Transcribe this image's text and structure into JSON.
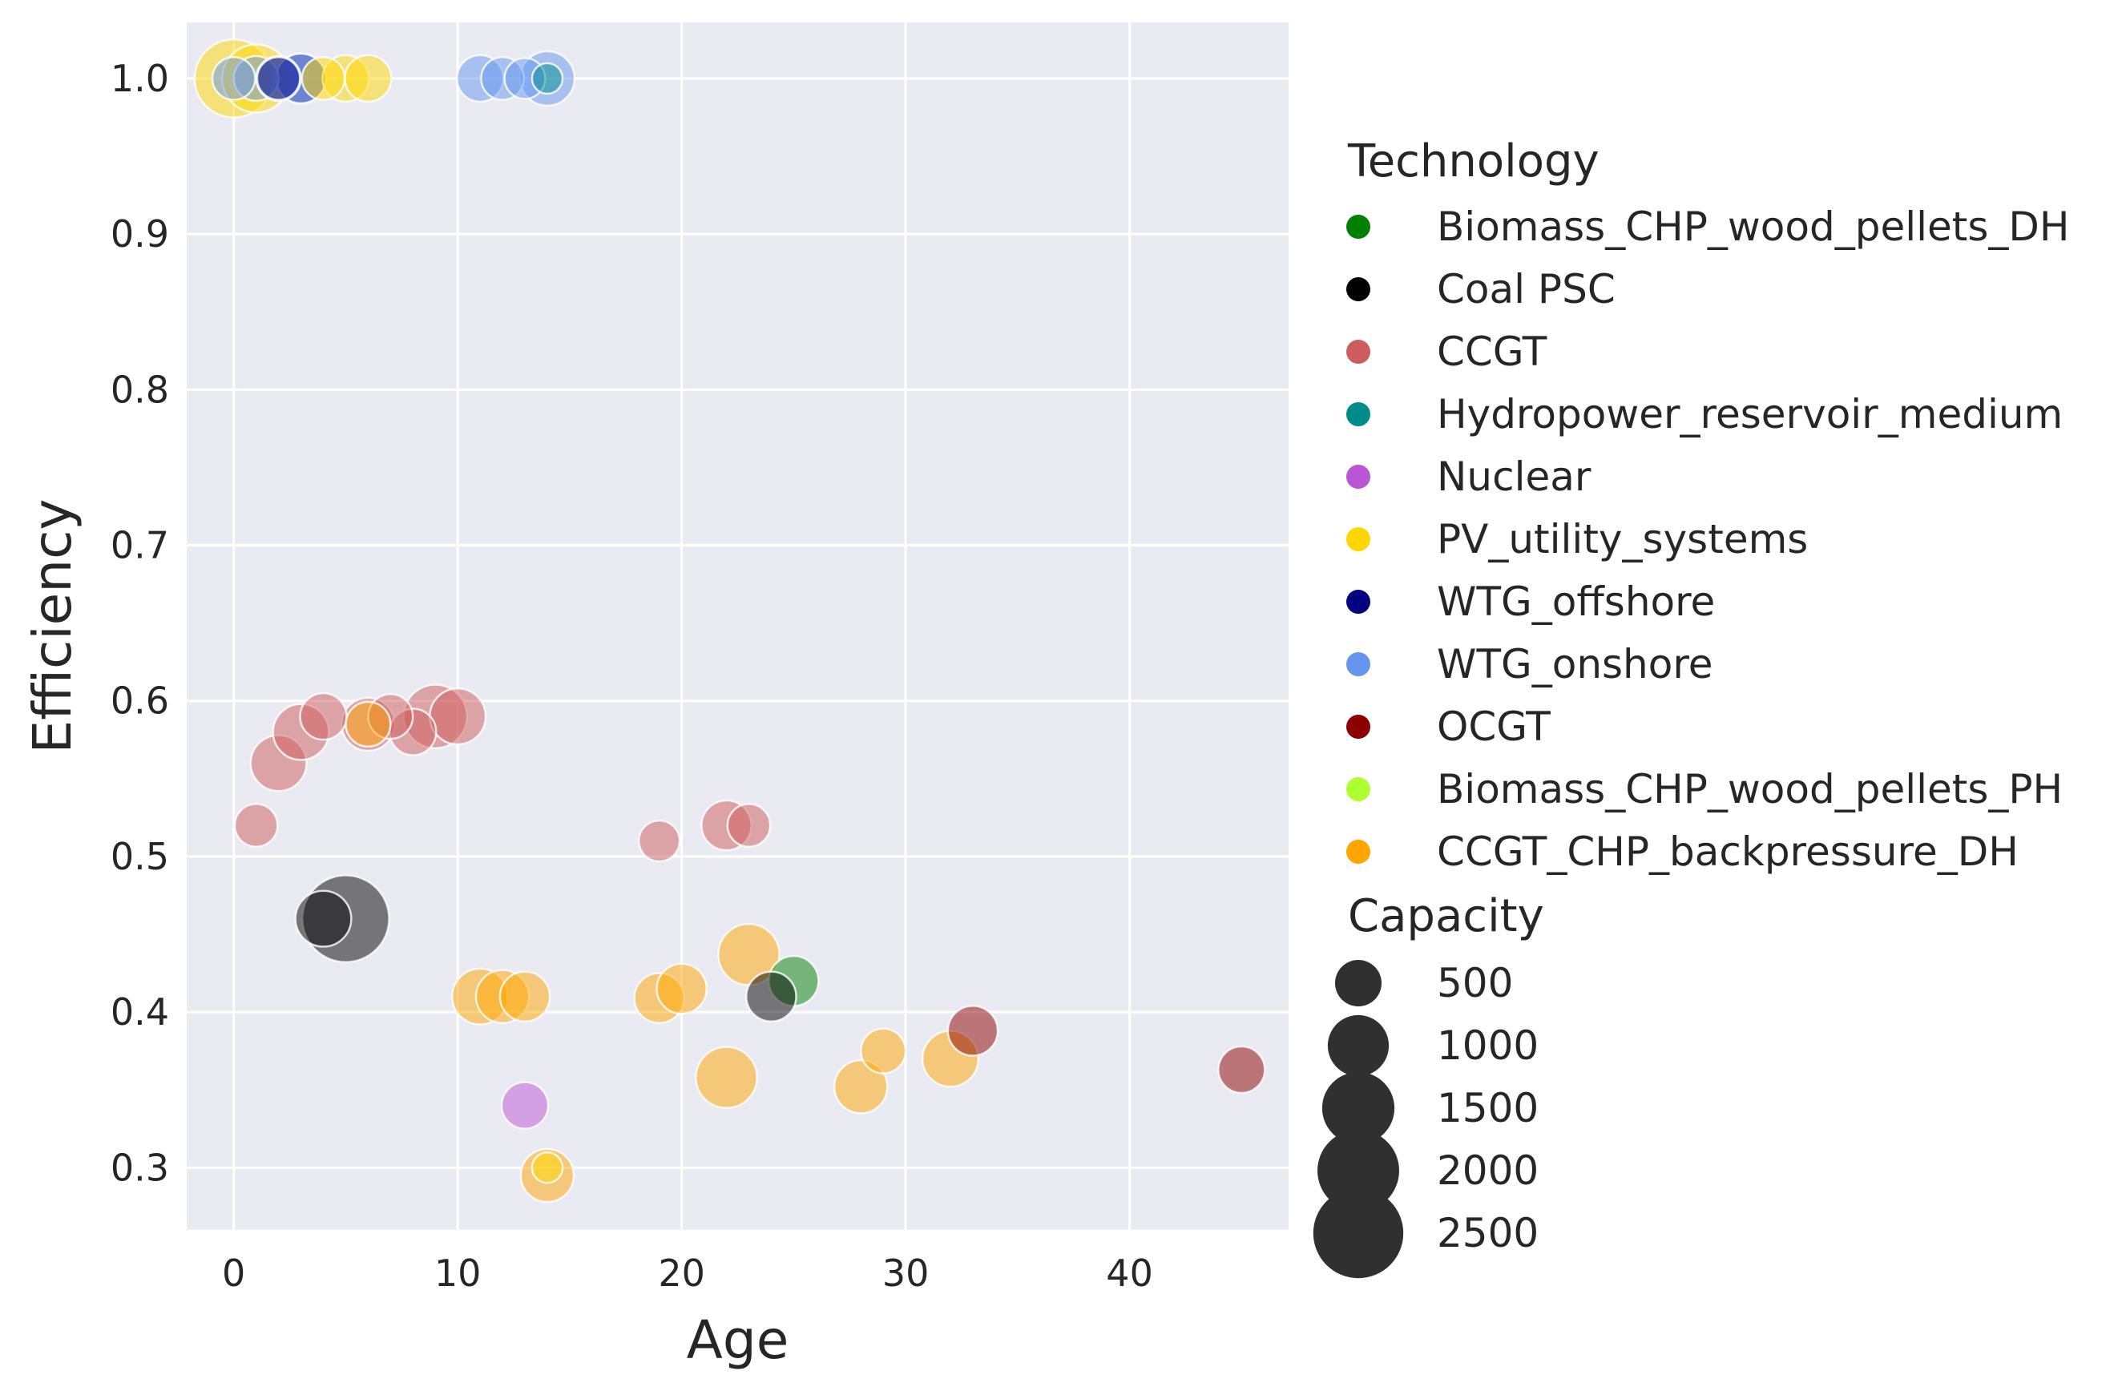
{
  "chart_data": {
    "type": "scatter",
    "xlabel": "Age",
    "ylabel": "Efficiency",
    "xlim": [
      -2.1,
      47.1
    ],
    "ylim": [
      0.26,
      1.036
    ],
    "x_ticks": [
      0,
      10,
      20,
      30,
      40
    ],
    "y_ticks": [
      0.3,
      0.4,
      0.5,
      0.6,
      0.7,
      0.8,
      0.9,
      1.0
    ],
    "y_tick_labels": [
      "0.3",
      "0.4",
      "0.5",
      "0.6",
      "0.7",
      "0.8",
      "0.9",
      "1.0"
    ],
    "grid": true,
    "background": "#EAEAF2",
    "point_alpha": 0.5,
    "legend": {
      "placement": "right",
      "hue_title": "Technology",
      "size_title": "Capacity",
      "size_entries": [
        500,
        1000,
        1500,
        2000,
        2500
      ]
    },
    "series": [
      {
        "name": "Biomass_CHP_wood_pellets_DH",
        "color": "#008000",
        "points": [
          {
            "x": 25,
            "y": 0.42,
            "capacity": 600
          }
        ]
      },
      {
        "name": "Coal PSC",
        "color": "#000000",
        "points": [
          {
            "x": 4,
            "y": 0.46,
            "capacity": 800
          },
          {
            "x": 5,
            "y": 0.46,
            "capacity": 2300
          },
          {
            "x": 24,
            "y": 0.41,
            "capacity": 600
          }
        ]
      },
      {
        "name": "CCGT",
        "color": "#CD5C5C",
        "points": [
          {
            "x": 1,
            "y": 0.52,
            "capacity": 400
          },
          {
            "x": 2,
            "y": 0.56,
            "capacity": 800
          },
          {
            "x": 3,
            "y": 0.58,
            "capacity": 800
          },
          {
            "x": 4,
            "y": 0.59,
            "capacity": 500
          },
          {
            "x": 6,
            "y": 0.585,
            "capacity": 700
          },
          {
            "x": 7,
            "y": 0.59,
            "capacity": 450
          },
          {
            "x": 8,
            "y": 0.58,
            "capacity": 500
          },
          {
            "x": 9,
            "y": 0.59,
            "capacity": 1100
          },
          {
            "x": 10,
            "y": 0.59,
            "capacity": 800
          },
          {
            "x": 19,
            "y": 0.51,
            "capacity": 350
          },
          {
            "x": 22,
            "y": 0.52,
            "capacity": 600
          },
          {
            "x": 23,
            "y": 0.52,
            "capacity": 400
          }
        ]
      },
      {
        "name": "Hydropower_reservoir_medium",
        "color": "#008B8B",
        "points": [
          {
            "x": 14,
            "y": 1.0,
            "capacity": 150
          }
        ]
      },
      {
        "name": "Nuclear",
        "color": "#BA55D3",
        "points": [
          {
            "x": 13,
            "y": 0.34,
            "capacity": 500
          }
        ]
      },
      {
        "name": "PV_utility_systems",
        "color": "#FFD700",
        "points": [
          {
            "x": 0,
            "y": 1.0,
            "capacity": 1800
          },
          {
            "x": 1,
            "y": 1.0,
            "capacity": 1300
          },
          {
            "x": 4,
            "y": 1.0,
            "capacity": 400
          },
          {
            "x": 5,
            "y": 1.0,
            "capacity": 500
          },
          {
            "x": 6,
            "y": 1.0,
            "capacity": 500
          },
          {
            "x": 14,
            "y": 0.3,
            "capacity": 150
          }
        ]
      },
      {
        "name": "WTG_offshore",
        "color": "#000080",
        "points": [
          {
            "x": 2,
            "y": 1.0,
            "capacity": 400
          },
          {
            "x": 3,
            "y": 1.0,
            "capacity": 600
          }
        ]
      },
      {
        "name": "WTG_onshore",
        "color": "#6495ED",
        "points": [
          {
            "x": 0,
            "y": 1.0,
            "capacity": 400
          },
          {
            "x": 1,
            "y": 1.0,
            "capacity": 450
          },
          {
            "x": 2,
            "y": 1.0,
            "capacity": 450
          },
          {
            "x": 3,
            "y": 1.0,
            "capacity": 600
          },
          {
            "x": 11,
            "y": 1.0,
            "capacity": 500
          },
          {
            "x": 12,
            "y": 1.0,
            "capacity": 400
          },
          {
            "x": 13,
            "y": 1.0,
            "capacity": 350
          },
          {
            "x": 14,
            "y": 1.0,
            "capacity": 750
          }
        ]
      },
      {
        "name": "OCGT",
        "color": "#8B0000",
        "points": [
          {
            "x": 33,
            "y": 0.388,
            "capacity": 600
          },
          {
            "x": 45,
            "y": 0.363,
            "capacity": 500
          }
        ]
      },
      {
        "name": "Biomass_CHP_wood_pellets_PH",
        "color": "#ADFF2F",
        "points": []
      },
      {
        "name": "CCGT_CHP_backpressure_DH",
        "color": "#FFA500",
        "points": [
          {
            "x": 6,
            "y": 0.585,
            "capacity": 450
          },
          {
            "x": 11,
            "y": 0.41,
            "capacity": 800
          },
          {
            "x": 12,
            "y": 0.41,
            "capacity": 700
          },
          {
            "x": 13,
            "y": 0.41,
            "capacity": 600
          },
          {
            "x": 14,
            "y": 0.295,
            "capacity": 700
          },
          {
            "x": 19,
            "y": 0.409,
            "capacity": 600
          },
          {
            "x": 20,
            "y": 0.415,
            "capacity": 600
          },
          {
            "x": 22,
            "y": 0.358,
            "capacity": 1000
          },
          {
            "x": 23,
            "y": 0.437,
            "capacity": 1000
          },
          {
            "x": 28,
            "y": 0.352,
            "capacity": 700
          },
          {
            "x": 29,
            "y": 0.375,
            "capacity": 450
          },
          {
            "x": 32,
            "y": 0.37,
            "capacity": 800
          }
        ]
      }
    ]
  }
}
